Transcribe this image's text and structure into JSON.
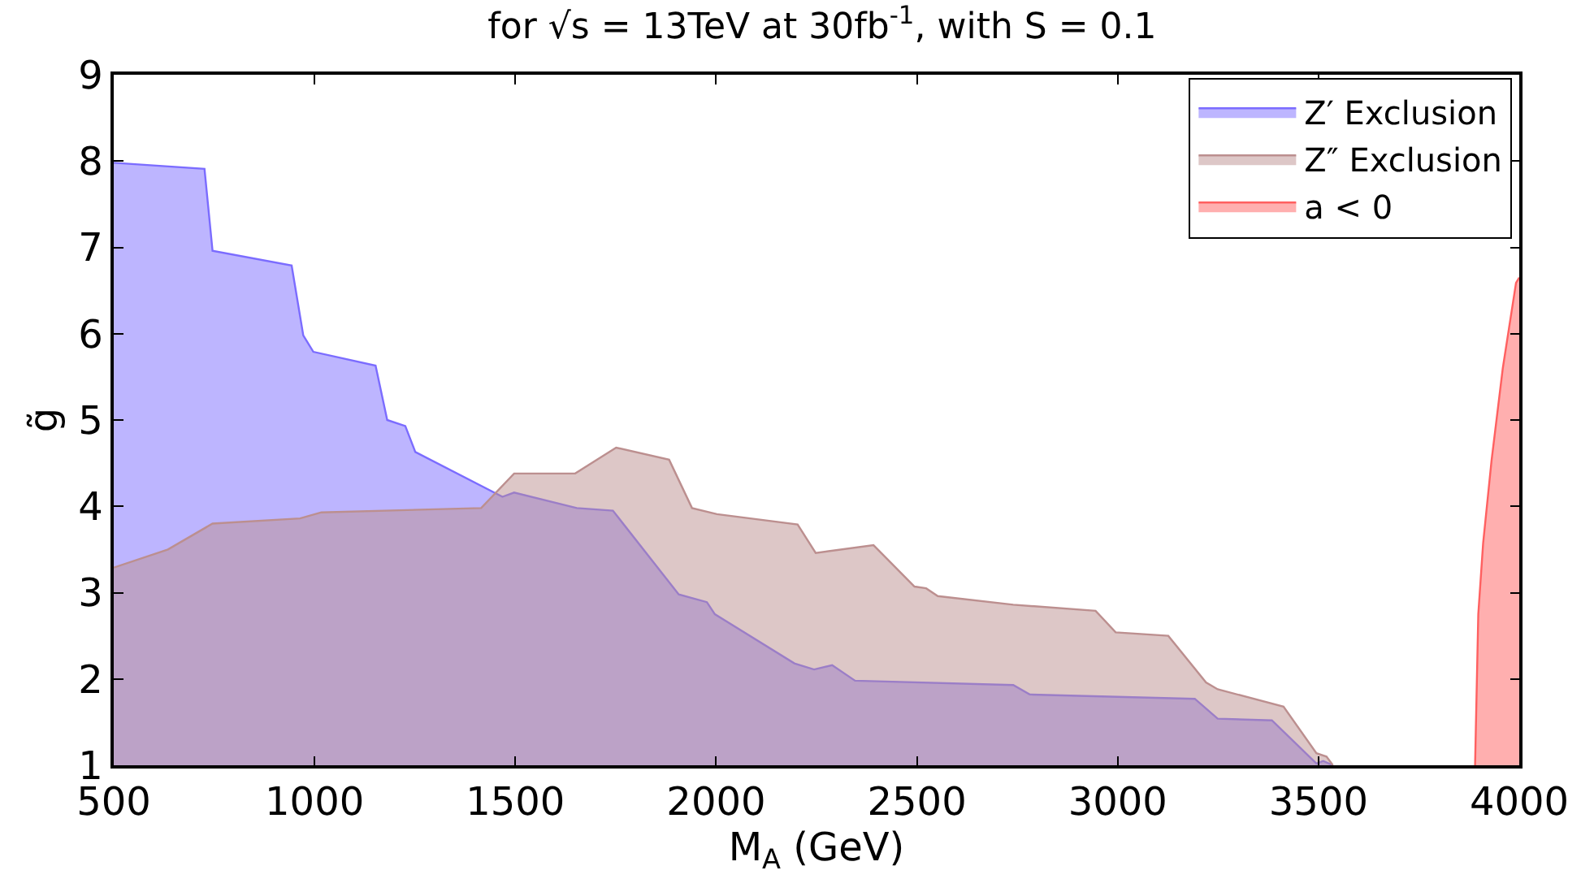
{
  "chart_data": {
    "type": "area",
    "title": "for √s = 13TeV at 30fb$^{-1}$, with S = 0.1",
    "xlabel": "M$_{A}$ (GeV)",
    "ylabel": "g̃",
    "xlim": [
      500,
      4000
    ],
    "xticks": [
      500,
      1000,
      1500,
      2000,
      2500,
      3000,
      3500,
      4000
    ],
    "ylim": [
      1,
      9
    ],
    "yticks": [
      1,
      2,
      3,
      4,
      5,
      6,
      7,
      8,
      9
    ],
    "grid": false,
    "legend": "top right",
    "series": [
      {
        "name": "Z′ Exclusion",
        "color": "#7b6cff",
        "x": [
          500,
          726,
          746,
          943,
          972,
          997,
          1152,
          1181,
          1226,
          1251,
          1468,
          1497,
          1653,
          1743,
          1907,
          1977,
          1997,
          2195,
          2244,
          2289,
          2346,
          2740,
          2781,
          3192,
          3249,
          3384,
          3495,
          3512,
          3536
        ],
        "values": [
          7.98,
          7.91,
          6.96,
          6.79,
          5.98,
          5.79,
          5.63,
          5.0,
          4.93,
          4.63,
          4.11,
          4.16,
          3.98,
          3.95,
          2.98,
          2.89,
          2.75,
          2.18,
          2.11,
          2.16,
          1.98,
          1.93,
          1.82,
          1.77,
          1.54,
          1.52,
          1.02,
          1.05,
          1.0
        ]
      },
      {
        "name": "Z″ Exclusion",
        "color": "#bc8f8f",
        "x": [
          500,
          635,
          746,
          964,
          1017,
          1415,
          1497,
          1649,
          1751,
          1883,
          1940,
          2002,
          2203,
          2248,
          2392,
          2494,
          2523,
          2552,
          2740,
          2945,
          2995,
          3126,
          3220,
          3249,
          3413,
          3495,
          3520,
          3536
        ],
        "values": [
          3.29,
          3.5,
          3.8,
          3.86,
          3.93,
          3.98,
          4.38,
          4.38,
          4.68,
          4.54,
          3.98,
          3.91,
          3.79,
          3.46,
          3.55,
          3.07,
          3.05,
          2.96,
          2.86,
          2.79,
          2.54,
          2.5,
          1.96,
          1.88,
          1.68,
          1.14,
          1.1,
          1.0
        ]
      },
      {
        "name": "a < 0",
        "color": "#ff6060",
        "x": [
          3890,
          3898,
          3910,
          3931,
          3959,
          3992,
          4000
        ],
        "values": [
          1.0,
          2.75,
          3.57,
          4.53,
          5.6,
          6.59,
          6.65
        ]
      }
    ]
  }
}
